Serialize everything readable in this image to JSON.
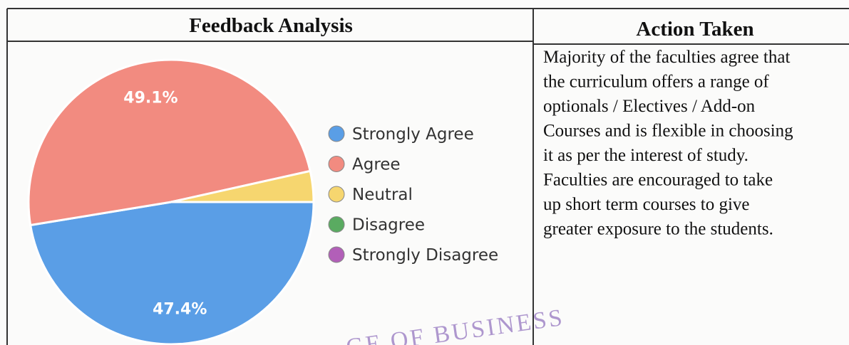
{
  "table": {
    "headers": [
      "Feedback Analysis",
      "Action Taken"
    ],
    "action_lines": [
      "Majority of the faculties agree that",
      "the curriculum offers a range of",
      "optionals / Electives / Add-on",
      "Courses and is flexible in choosing",
      "it as per the interest of study.",
      "Faculties are encouraged to take",
      "up short term courses to give",
      "greater exposure to the students."
    ]
  },
  "chart_data": {
    "type": "pie",
    "categories": [
      "Strongly Agree",
      "Agree",
      "Neutral",
      "Disagree",
      "Strongly Disagree"
    ],
    "values": [
      47.4,
      49.1,
      3.5,
      0,
      0
    ],
    "value_labels": [
      "47.4%",
      "49.1%",
      null,
      null,
      null
    ],
    "colors": [
      "#5a9ee6",
      "#f28b80",
      "#f6d66f",
      "#5aab61",
      "#b25fb8"
    ]
  },
  "stamp": "GE OF BUSINESS"
}
